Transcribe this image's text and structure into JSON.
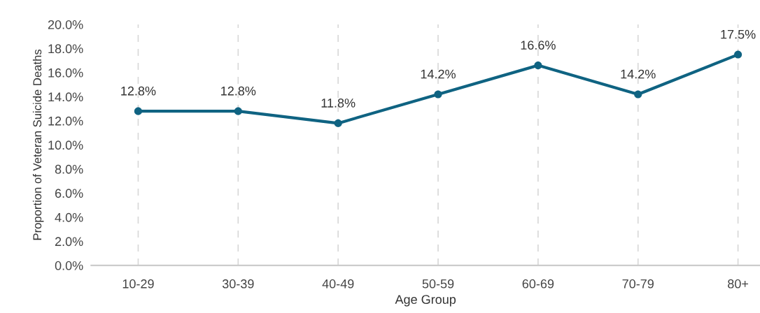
{
  "chart_data": {
    "type": "line",
    "xlabel": "Age Group",
    "ylabel": "Proportion of Veteran Suicide Deaths",
    "categories": [
      "10-29",
      "30-39",
      "40-49",
      "50-59",
      "60-69",
      "70-79",
      "80+"
    ],
    "series": [
      {
        "color": "#0f6382",
        "values": [
          12.8,
          12.8,
          11.8,
          14.2,
          16.6,
          14.2,
          17.5
        ],
        "value_labels": [
          "12.8%",
          "12.8%",
          "11.8%",
          "14.2%",
          "16.6%",
          "14.2%",
          "17.5%"
        ]
      }
    ],
    "ylim": [
      0,
      20
    ],
    "yticks": [
      {
        "value": 0,
        "label": "0.0%"
      },
      {
        "value": 2,
        "label": "2.0%"
      },
      {
        "value": 4,
        "label": "4.0%"
      },
      {
        "value": 6,
        "label": "6.0%"
      },
      {
        "value": 8,
        "label": "8.0%"
      },
      {
        "value": 10,
        "label": "10.0%"
      },
      {
        "value": 12,
        "label": "12.0%"
      },
      {
        "value": 14,
        "label": "14.0%"
      },
      {
        "value": 16,
        "label": "16.0%"
      },
      {
        "value": 18,
        "label": "18.0%"
      },
      {
        "value": 20,
        "label": "20.0%"
      }
    ],
    "grid": "x",
    "marker": "circle",
    "line_style": "solid"
  }
}
